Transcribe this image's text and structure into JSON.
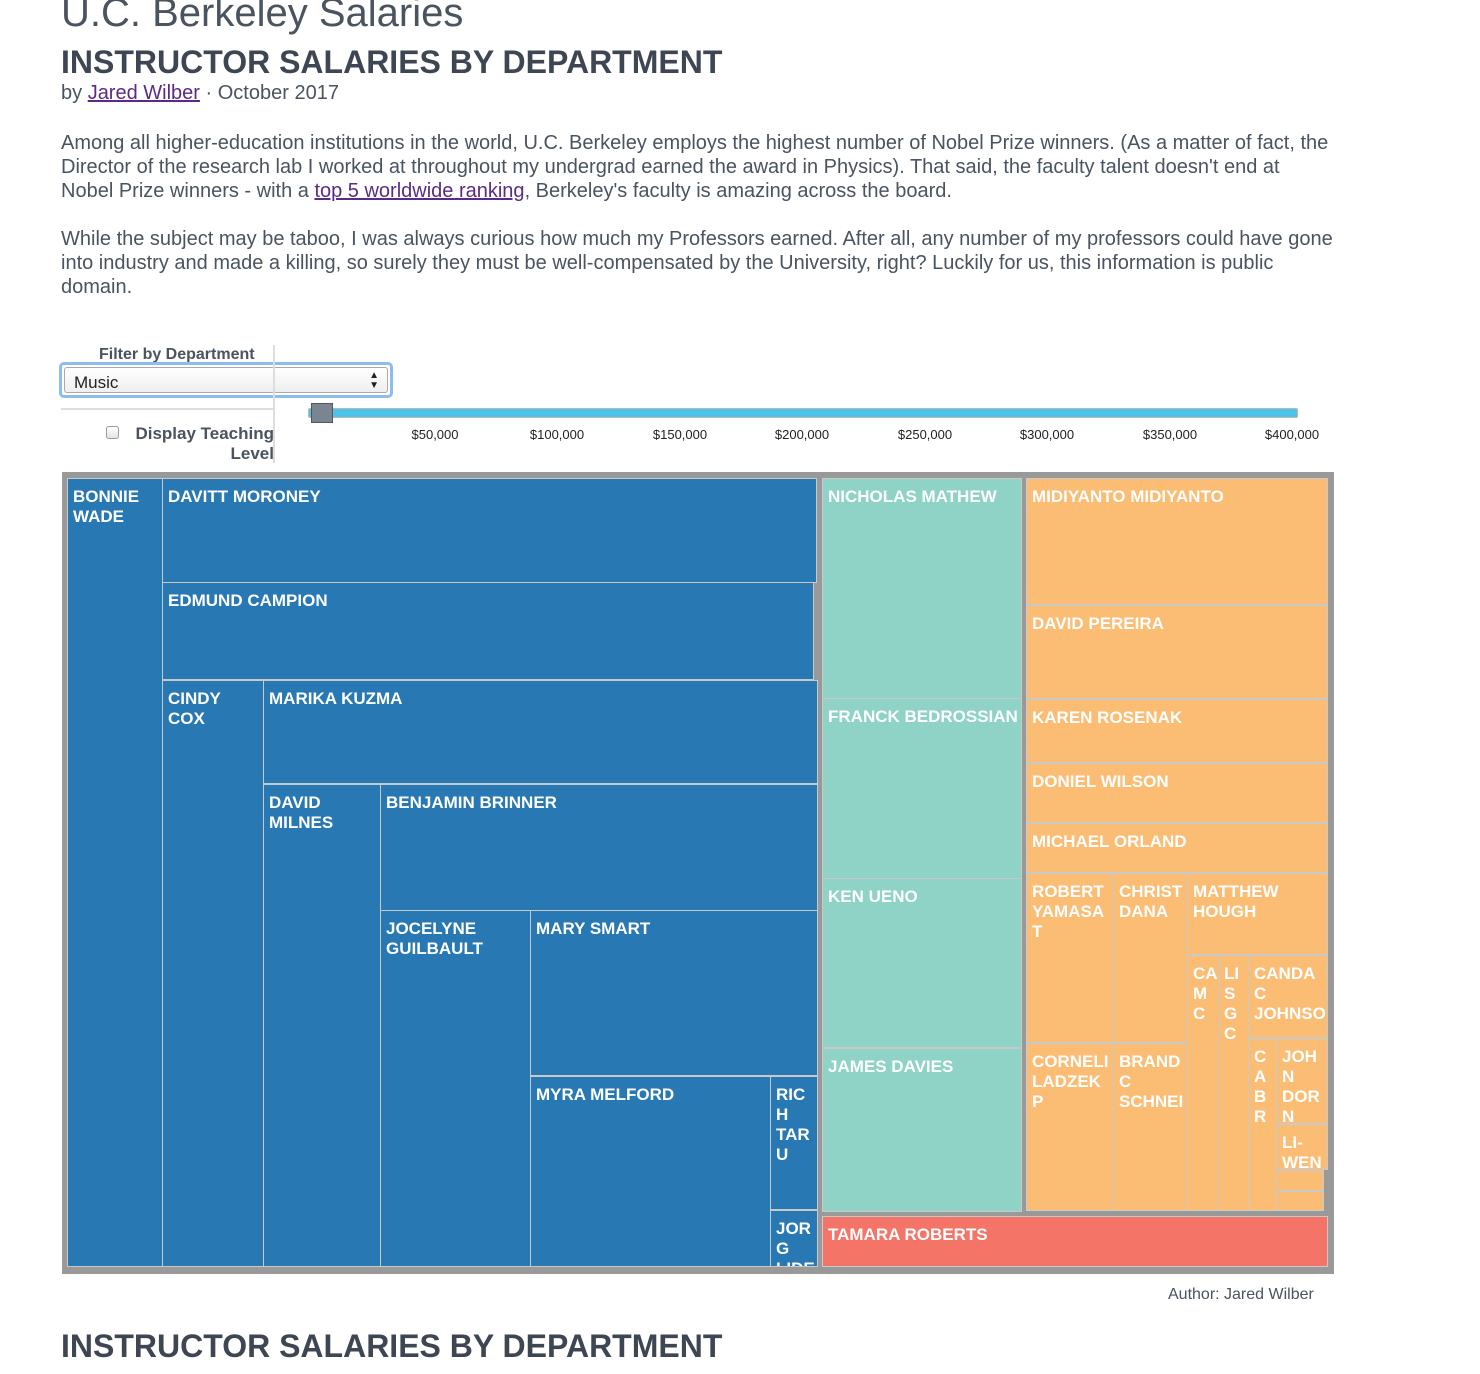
{
  "page": {
    "title": "U.C. Berkeley Salaries",
    "subtitle": "INSTRUCTOR SALARIES BY DEPARTMENT",
    "byline": {
      "prefix": "by",
      "author_link": "Jared Wilber",
      "separator": "·",
      "date": "October 2017"
    },
    "paragraph1": {
      "part1": "Among all higher-education institutions in the world, U.C. Berkeley employs the highest number of Nobel Prize winners. (As a matter of fact, the Director of the research lab I worked at throughout my undergrad earned the award in Physics). That said, the faculty talent doesn't end at Nobel Prize winners - with a",
      "link": "top 5 worldwide ranking",
      "part2": ", Berkeley's faculty is amazing across the board."
    },
    "paragraph2": "While the subject may be taboo, I was always curious how much my Professors earned. After all, any number of my professors could have gone into industry and made a killing, so surely they must be well-compensated by the University, right? Luckily for us, this information is public domain.",
    "footer_subtitle": "INSTRUCTOR SALARIES BY DEPARTMENT"
  },
  "controls": {
    "filter_label": "Filter by Department",
    "department_selected": "Music",
    "arrows_icon": "updown-arrows-icon",
    "checkbox_label": "Display Teaching Level",
    "checkbox_checked": false,
    "slider_min_value": 0,
    "slider_max_value": 400000,
    "slider_handle_value": 0,
    "tick_labels": [
      "$50,000",
      "$100,000",
      "$150,000",
      "$200,000",
      "$250,000",
      "$300,000",
      "$350,000",
      "$400,000"
    ]
  },
  "treemap": {
    "colors": {
      "blue": "#2778b3",
      "teal": "#8fd3c7",
      "orange": "#fbbc74",
      "red": "#f47567",
      "background": "#999999"
    },
    "instructors": [
      "BONNIE WADE",
      "DAVITT MORONEY",
      "EDMUND CAMPION",
      "CINDY COX",
      "MARIKA KUZMA",
      "DAVID MILNES",
      "BENJAMIN BRINNER",
      "JOCELYNE GUILBAULT",
      "MARY SMART",
      "MYRA MELFORD",
      "RICH TARU",
      "JORG LIDE",
      "NICHOLAS MATHEW",
      "FRANCK BEDROSSIAN",
      "KEN UENO",
      "JAMES DAVIES",
      "MIDIYANTO MIDIYANTO",
      "DAVID PEREIRA",
      "KAREN ROSENAK",
      "DONIEL WILSON",
      "MICHAEL ORLAND",
      "ROBERT YAMASAT",
      "CHRIST DANA",
      "MATTHEW HOUGH",
      "CA MC",
      "LIS GC",
      "CANDAC JOHNSO",
      "CORNELI LADZEKP",
      "BRANDC SCHNEI",
      "CA BR",
      "JOHN DORN",
      "LI-WEN",
      "TAMARA ROBERTS"
    ]
  },
  "author_note": "Author: Jared Wilber"
}
